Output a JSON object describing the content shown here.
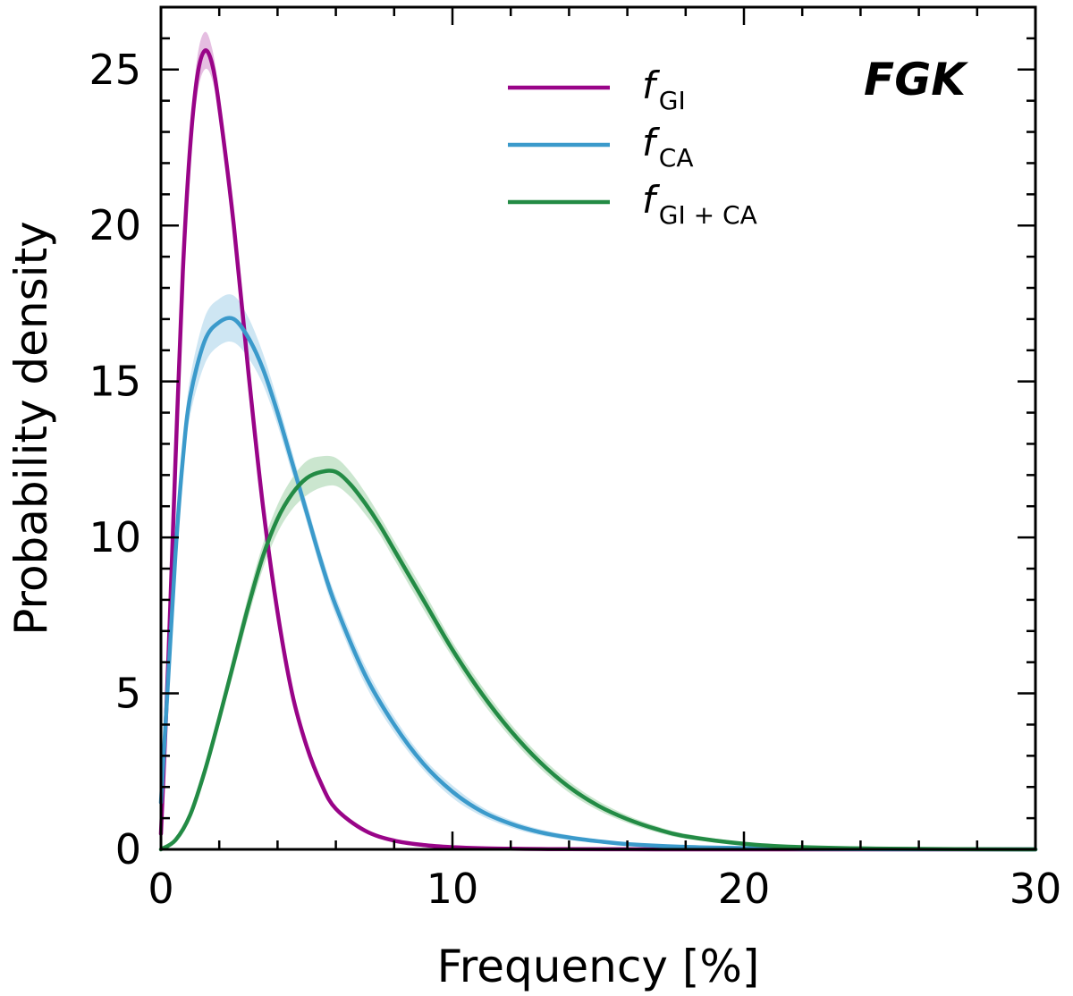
{
  "chart_data": {
    "type": "line",
    "title": "",
    "annotation": "FGK",
    "xlabel": "Frequency [%]",
    "ylabel": "Probability density",
    "xlim": [
      0,
      30
    ],
    "ylim": [
      0,
      27
    ],
    "x_ticks": [
      0,
      10,
      20,
      30
    ],
    "y_ticks": [
      0,
      5,
      10,
      15,
      20,
      25
    ],
    "x_tick_labels": [
      "0",
      "10",
      "20",
      "30"
    ],
    "y_tick_labels": [
      "0",
      "5",
      "10",
      "15",
      "20",
      "25"
    ],
    "grid": false,
    "legend_position": "top-center",
    "series": [
      {
        "name": "fGI",
        "legend_main": "f",
        "legend_sub": "GI",
        "color": "#990488",
        "band_color": "#e1b3dc",
        "x": [
          0,
          0.25,
          0.5,
          0.75,
          1.0,
          1.25,
          1.5,
          1.75,
          2.0,
          2.5,
          3.0,
          3.5,
          4.0,
          4.5,
          5.0,
          5.5,
          6.0,
          7.0,
          8.0,
          9.0,
          10.0,
          11.0,
          12.0,
          13.0,
          14.0,
          16.0,
          18.0,
          20.0,
          25.0,
          30.0
        ],
        "y": [
          0.5,
          6.0,
          12.5,
          18.5,
          22.5,
          24.8,
          25.6,
          25.2,
          23.8,
          20.0,
          15.3,
          11.0,
          7.6,
          5.0,
          3.3,
          2.1,
          1.3,
          0.6,
          0.28,
          0.14,
          0.07,
          0.035,
          0.02,
          0.01,
          0.006,
          0.002,
          0.001,
          0.0,
          0.0,
          0.0
        ],
        "band": [
          0.05,
          0.12,
          0.2,
          0.35,
          0.5,
          0.6,
          0.6,
          0.5,
          0.4,
          0.3,
          0.25,
          0.2,
          0.15,
          0.1,
          0.08,
          0.05,
          0.03,
          0.02,
          0.01,
          0.01,
          0.0,
          0.0,
          0.0,
          0.0,
          0.0,
          0.0,
          0.0,
          0.0,
          0.0,
          0.0
        ]
      },
      {
        "name": "fCA",
        "legend_main": "f",
        "legend_sub": "CA",
        "color": "#3b9acb",
        "band_color": "#c6e2f1",
        "x": [
          0,
          0.25,
          0.5,
          0.75,
          1.0,
          1.5,
          2.0,
          2.5,
          3.0,
          3.5,
          4.0,
          4.5,
          5.0,
          5.5,
          6.0,
          7.0,
          8.0,
          9.0,
          10.0,
          11.0,
          12.0,
          13.0,
          14.0,
          15.0,
          16.0,
          18.0,
          20.0,
          22.0,
          25.0,
          30.0
        ],
        "y": [
          1.5,
          5.5,
          9.5,
          12.5,
          14.5,
          16.3,
          16.9,
          17.0,
          16.4,
          15.4,
          14.0,
          12.4,
          10.8,
          9.2,
          7.8,
          5.6,
          4.0,
          2.75,
          1.85,
          1.22,
          0.82,
          0.55,
          0.38,
          0.26,
          0.17,
          0.08,
          0.04,
          0.015,
          0.005,
          0.0
        ],
        "band": [
          0.1,
          0.2,
          0.3,
          0.45,
          0.6,
          0.75,
          0.75,
          0.75,
          0.65,
          0.5,
          0.4,
          0.35,
          0.3,
          0.3,
          0.3,
          0.3,
          0.25,
          0.2,
          0.2,
          0.15,
          0.12,
          0.1,
          0.08,
          0.06,
          0.05,
          0.03,
          0.02,
          0.01,
          0.0,
          0.0
        ]
      },
      {
        "name": "fGI+CA",
        "legend_main": "f",
        "legend_sub": "GI + CA",
        "color": "#238b45",
        "band_color": "#c2e2c7",
        "x": [
          0,
          0.5,
          1.0,
          1.5,
          2.0,
          2.5,
          3.0,
          3.5,
          4.0,
          4.5,
          5.0,
          5.5,
          6.0,
          6.5,
          7.0,
          7.5,
          8.0,
          9.0,
          10.0,
          11.0,
          12.0,
          13.0,
          14.0,
          15.0,
          16.0,
          17.0,
          18.0,
          20.0,
          22.0,
          25.0,
          30.0
        ],
        "y": [
          0.0,
          0.3,
          1.1,
          2.5,
          4.2,
          6.0,
          7.8,
          9.4,
          10.6,
          11.4,
          11.9,
          12.1,
          12.1,
          11.7,
          11.1,
          10.4,
          9.6,
          8.0,
          6.4,
          5.0,
          3.8,
          2.8,
          2.0,
          1.4,
          0.97,
          0.65,
          0.42,
          0.18,
          0.07,
          0.02,
          0.0
        ],
        "band": [
          0.0,
          0.05,
          0.1,
          0.15,
          0.2,
          0.3,
          0.35,
          0.4,
          0.45,
          0.5,
          0.55,
          0.5,
          0.45,
          0.4,
          0.35,
          0.3,
          0.3,
          0.3,
          0.25,
          0.25,
          0.22,
          0.2,
          0.18,
          0.15,
          0.12,
          0.1,
          0.08,
          0.05,
          0.03,
          0.01,
          0.0
        ]
      }
    ]
  }
}
